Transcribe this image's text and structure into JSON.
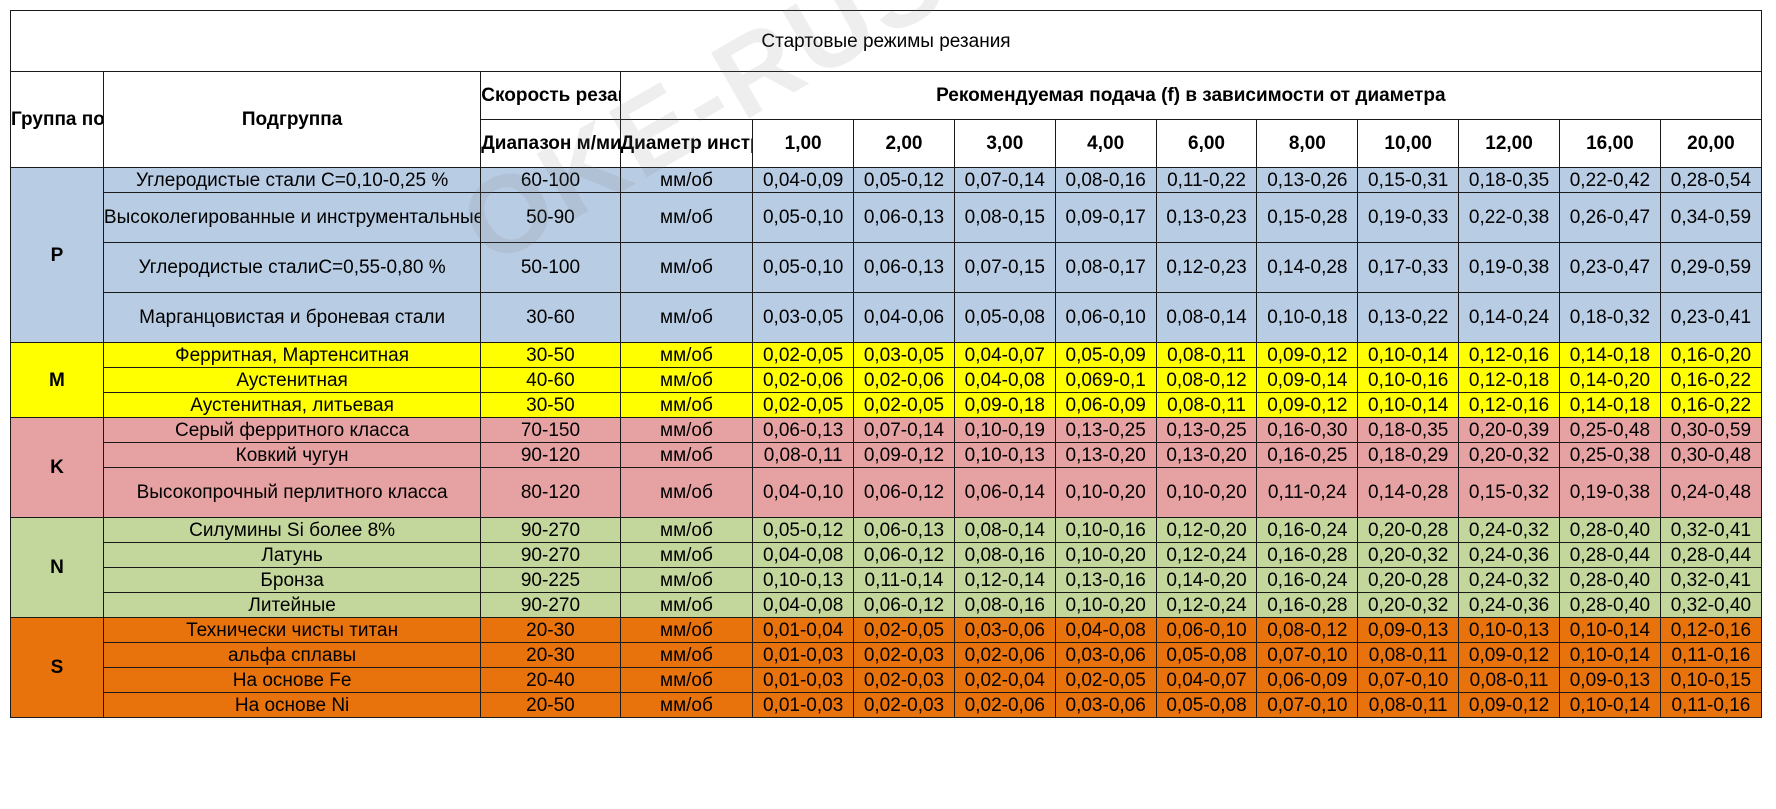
{
  "title": "Стартовые режимы резания",
  "header": {
    "iso_group": "Группа по ISO",
    "subgroup": "Подгруппа",
    "speed": "Скорость резания Vc",
    "range": "Диапазон м/мин",
    "tool_diameter": "Диаметр инструмента",
    "feed_title": "Рекомендуемая подача (f) в зависимости от диаметра",
    "diameters": [
      "1,00",
      "2,00",
      "3,00",
      "4,00",
      "6,00",
      "8,00",
      "10,00",
      "12,00",
      "16,00",
      "20,00"
    ]
  },
  "groups": [
    {
      "code": "P",
      "color": "#b8cce4",
      "rows": [
        {
          "sub": "Углеродистые стали C=0,10-0,25 %",
          "vc": "60-100",
          "unit": "мм/об",
          "feeds": [
            "0,04-0,09",
            "0,05-0,12",
            "0,07-0,14",
            "0,08-0,16",
            "0,11-0,22",
            "0,13-0,26",
            "0,15-0,31",
            "0,18-0,35",
            "0,22-0,42",
            "0,28-0,54"
          ]
        },
        {
          "sub": "Высоколегированные и инструментальные стали",
          "vc": "50-90",
          "unit": "мм/об",
          "feeds": [
            "0,05-0,10",
            "0,06-0,13",
            "0,08-0,15",
            "0,09-0,17",
            "0,13-0,23",
            "0,15-0,28",
            "0,19-0,33",
            "0,22-0,38",
            "0,26-0,47",
            "0,34-0,59"
          ]
        },
        {
          "sub": "Углеродистые сталиC=0,55-0,80 %",
          "vc": "50-100",
          "unit": "мм/об",
          "feeds": [
            "0,05-0,10",
            "0,06-0,13",
            "0,07-0,15",
            "0,08-0,17",
            "0,12-0,23",
            "0,14-0,28",
            "0,17-0,33",
            "0,19-0,38",
            "0,23-0,47",
            "0,29-0,59"
          ]
        },
        {
          "sub": "Марганцовистая и броневая стали",
          "vc": "30-60",
          "unit": "мм/об",
          "feeds": [
            "0,03-0,05",
            "0,04-0,06",
            "0,05-0,08",
            "0,06-0,10",
            "0,08-0,14",
            "0,10-0,18",
            "0,13-0,22",
            "0,14-0,24",
            "0,18-0,32",
            "0,23-0,41"
          ]
        }
      ]
    },
    {
      "code": "M",
      "color": "#ffff00",
      "rows": [
        {
          "sub": "Ферритная, Мартенситная",
          "vc": "30-50",
          "unit": "мм/об",
          "feeds": [
            "0,02-0,05",
            "0,03-0,05",
            "0,04-0,07",
            "0,05-0,09",
            "0,08-0,11",
            "0,09-0,12",
            "0,10-0,14",
            "0,12-0,16",
            "0,14-0,18",
            "0,16-0,20"
          ]
        },
        {
          "sub": "Аустенитная",
          "vc": "40-60",
          "unit": "мм/об",
          "feeds": [
            "0,02-0,06",
            "0,02-0,06",
            "0,04-0,08",
            "0,069-0,1",
            "0,08-0,12",
            "0,09-0,14",
            "0,10-0,16",
            "0,12-0,18",
            "0,14-0,20",
            "0,16-0,22"
          ]
        },
        {
          "sub": "Аустенитная, литьевая",
          "vc": "30-50",
          "unit": "мм/об",
          "feeds": [
            "0,02-0,05",
            "0,02-0,05",
            "0,09-0,18",
            "0,06-0,09",
            "0,08-0,11",
            "0,09-0,12",
            "0,10-0,14",
            "0,12-0,16",
            "0,14-0,18",
            "0,16-0,22"
          ]
        }
      ]
    },
    {
      "code": "K",
      "color": "#e6a2a2",
      "rows": [
        {
          "sub": "Серый ферритного класса",
          "vc": "70-150",
          "unit": "мм/об",
          "feeds": [
            "0,06-0,13",
            "0,07-0,14",
            "0,10-0,19",
            "0,13-0,25",
            "0,13-0,25",
            "0,16-0,30",
            "0,18-0,35",
            "0,20-0,39",
            "0,25-0,48",
            "0,30-0,59"
          ]
        },
        {
          "sub": "Ковкий чугун",
          "vc": "90-120",
          "unit": "мм/об",
          "feeds": [
            "0,08-0,11",
            "0,09-0,12",
            "0,10-0,13",
            "0,13-0,20",
            "0,13-0,20",
            "0,16-0,25",
            "0,18-0,29",
            "0,20-0,32",
            "0,25-0,38",
            "0,30-0,48"
          ]
        },
        {
          "sub": "Высокопрочный перлитного класса",
          "vc": "80-120",
          "unit": "мм/об",
          "feeds": [
            "0,04-0,10",
            "0,06-0,12",
            "0,06-0,14",
            "0,10-0,20",
            "0,10-0,20",
            "0,11-0,24",
            "0,14-0,28",
            "0,15-0,32",
            "0,19-0,38",
            "0,24-0,48"
          ]
        }
      ]
    },
    {
      "code": "N",
      "color": "#c3d69b",
      "rows": [
        {
          "sub": "Силумины Si более 8%",
          "vc": "90-270",
          "unit": "мм/об",
          "feeds": [
            "0,05-0,12",
            "0,06-0,13",
            "0,08-0,14",
            "0,10-0,16",
            "0,12-0,20",
            "0,16-0,24",
            "0,20-0,28",
            "0,24-0,32",
            "0,28-0,40",
            "0,32-0,41"
          ]
        },
        {
          "sub": "Латунь",
          "vc": "90-270",
          "unit": "мм/об",
          "feeds": [
            "0,04-0,08",
            "0,06-0,12",
            "0,08-0,16",
            "0,10-0,20",
            "0,12-0,24",
            "0,16-0,28",
            "0,20-0,32",
            "0,24-0,36",
            "0,28-0,44",
            "0,28-0,44"
          ]
        },
        {
          "sub": "Бронза",
          "vc": "90-225",
          "unit": "мм/об",
          "feeds": [
            "0,10-0,13",
            "0,11-0,14",
            "0,12-0,14",
            "0,13-0,16",
            "0,14-0,20",
            "0,16-0,24",
            "0,20-0,28",
            "0,24-0,32",
            "0,28-0,40",
            "0,32-0,41"
          ]
        },
        {
          "sub": "Литейные",
          "vc": "90-270",
          "unit": "мм/об",
          "feeds": [
            "0,04-0,08",
            "0,06-0,12",
            "0,08-0,16",
            "0,10-0,20",
            "0,12-0,24",
            "0,16-0,28",
            "0,20-0,32",
            "0,24-0,36",
            "0,28-0,40",
            "0,32-0,40"
          ]
        }
      ]
    },
    {
      "code": "S",
      "color": "#e8720c",
      "rows": [
        {
          "sub": "Технически чисты титан",
          "vc": "20-30",
          "unit": "мм/об",
          "feeds": [
            "0,01-0,04",
            "0,02-0,05",
            "0,03-0,06",
            "0,04-0,08",
            "0,06-0,10",
            "0,08-0,12",
            "0,09-0,13",
            "0,10-0,13",
            "0,10-0,14",
            "0,12-0,16"
          ]
        },
        {
          "sub": "альфа сплавы",
          "vc": "20-30",
          "unit": "мм/об",
          "feeds": [
            "0,01-0,03",
            "0,02-0,03",
            "0,02-0,06",
            "0,03-0,06",
            "0,05-0,08",
            "0,07-0,10",
            "0,08-0,11",
            "0,09-0,12",
            "0,10-0,14",
            "0,11-0,16"
          ]
        },
        {
          "sub": "На основе Fe",
          "vc": "20-40",
          "unit": "мм/об",
          "feeds": [
            "0,01-0,03",
            "0,02-0,03",
            "0,02-0,04",
            "0,02-0,05",
            "0,04-0,07",
            "0,06-0,09",
            "0,07-0,10",
            "0,08-0,11",
            "0,09-0,13",
            "0,10-0,15"
          ]
        },
        {
          "sub": "На основе Ni",
          "vc": "20-50",
          "unit": "мм/об",
          "feeds": [
            "0,01-0,03",
            "0,02-0,03",
            "0,02-0,06",
            "0,03-0,06",
            "0,05-0,08",
            "0,07-0,10",
            "0,08-0,11",
            "0,09-0,12",
            "0,10-0,14",
            "0,11-0,16"
          ]
        }
      ]
    }
  ],
  "watermark": "OKE-RUSSIA.RU"
}
